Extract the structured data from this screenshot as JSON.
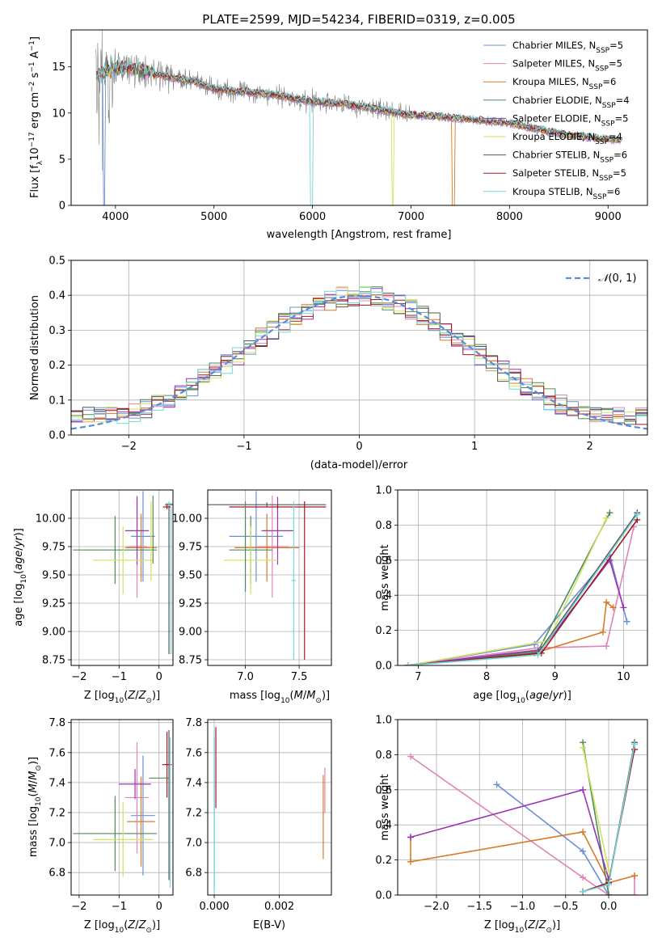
{
  "colors": {
    "ChabMILES": "#6b8fd6",
    "SalpMILES": "#e084b7",
    "KrouMILES": "#d97a26",
    "ChabELODIE": "#4f8b5a",
    "SalpELODIE": "#9a34b3",
    "KrouELODIE": "#cfe35f",
    "ChabSTELIB": "#555555",
    "SalpSTELIB": "#a31822",
    "KrouSTELIB": "#74d6d8"
  },
  "chart_data": [
    {
      "id": "spectrum",
      "type": "line",
      "title": "PLATE=2599, MJD=54234, FIBERID=0319, z=0.005",
      "xlabel": "wavelength [Angstrom, rest frame]",
      "ylabel": "Flux [f",
      "xlim": [
        3550,
        9400
      ],
      "ylim": [
        0,
        19
      ],
      "xticks": [
        4000,
        5000,
        6000,
        7000,
        8000,
        9000
      ],
      "yticks": [
        0,
        5,
        10,
        15
      ],
      "legend_position": "top-right",
      "grid": false,
      "observed": {
        "color": "#808080",
        "x": [
          3800,
          4000,
          4200,
          4500,
          4800,
          5000,
          5300,
          5600,
          6000,
          6300,
          6600,
          7000,
          7300,
          7600,
          8000,
          8300,
          8600,
          9000,
          9150
        ],
        "y": [
          14,
          15,
          14.8,
          14,
          13.4,
          12.6,
          12.3,
          12,
          11.2,
          11,
          10.5,
          9.8,
          9.6,
          9.3,
          8.9,
          8.2,
          7.6,
          7.2,
          7.0
        ]
      },
      "series": [
        {
          "name": "Chabrier MILES, N",
          "nssp": "5",
          "color_key": "ChabMILES"
        },
        {
          "name": "Salpeter MILES, N",
          "nssp": "5",
          "color_key": "SalpMILES"
        },
        {
          "name": "Kroupa MILES, N",
          "nssp": "6",
          "color_key": "KrouMILES"
        },
        {
          "name": "Chabrier ELODIE, N",
          "nssp": "4",
          "color_key": "ChabELODIE"
        },
        {
          "name": "Salpeter ELODIE, N",
          "nssp": "5",
          "color_key": "SalpELODIE"
        },
        {
          "name": "Kroupa ELODIE, N",
          "nssp": "4",
          "color_key": "KrouELODIE"
        },
        {
          "name": "Chabrier STELIB, N",
          "nssp": "6",
          "color_key": "ChabSTELIB"
        },
        {
          "name": "Salpeter STELIB, N",
          "nssp": "5",
          "color_key": "SalpSTELIB"
        },
        {
          "name": "Kroupa STELIB, N",
          "nssp": "6",
          "color_key": "KrouSTELIB"
        }
      ]
    },
    {
      "id": "residuals",
      "type": "line",
      "xlabel": "(data-model)/error",
      "ylabel": "Normed distribution",
      "xlim": [
        -2.5,
        2.5
      ],
      "ylim": [
        0,
        0.5
      ],
      "xticks": [
        -2,
        -1,
        0,
        1,
        2
      ],
      "yticks": [
        0.0,
        0.1,
        0.2,
        0.3,
        0.4,
        0.5
      ],
      "grid": true,
      "legend_position": "top-right",
      "normal_curve": {
        "label": "(0, 1)",
        "mean": 0,
        "sigma": 1,
        "color": "#5b8bd8"
      }
    },
    {
      "id": "z-age",
      "type": "scatter",
      "xlabel": "Z [log",
      "ylabel": "age  [log",
      "xlim": [
        -2.2,
        0.35
      ],
      "ylim": [
        8.7,
        10.25
      ],
      "xticks": [
        -2,
        -1,
        0
      ],
      "yticks": [
        8.75,
        9.0,
        9.25,
        9.5,
        9.75,
        10.0
      ],
      "grid": true,
      "points": [
        {
          "c": "ChabMILES",
          "x": -0.4,
          "xe": 0.3,
          "y": 9.84,
          "ye": 0.4
        },
        {
          "c": "SalpMILES",
          "x": -0.55,
          "xe": 0.25,
          "y": 9.75,
          "ye": 0.45
        },
        {
          "c": "KrouMILES",
          "x": -0.45,
          "xe": 0.4,
          "y": 9.74,
          "ye": 0.3
        },
        {
          "c": "ChabELODIE",
          "x": -1.1,
          "xe": 1.05,
          "y": 9.72,
          "ye": 0.3
        },
        {
          "c": "SalpELODIE",
          "x": -0.55,
          "xe": 0.3,
          "y": 9.89,
          "ye": 0.3
        },
        {
          "c": "KrouELODIE",
          "x": -0.9,
          "xe": 0.75,
          "y": 9.63,
          "ye": 0.3
        },
        {
          "c": "ChabSTELIB",
          "x": 0.25,
          "xe": 0.1,
          "y": 10.12,
          "ye": 0.02
        },
        {
          "c": "SalpSTELIB",
          "x": 0.2,
          "xe": 0.1,
          "y": 10.1,
          "ye": 0.02
        },
        {
          "c": "KrouSTELIB",
          "x": 0.25,
          "xe": 0.08,
          "y": 10.13,
          "ye": 0.02
        },
        {
          "c": "ChabELODIE",
          "x": -0.15,
          "xe": 0.0,
          "y": 9.9,
          "ye": 0.3
        },
        {
          "c": "KrouELODIE",
          "x": -0.2,
          "xe": 0.0,
          "y": 9.8,
          "ye": 0.35
        },
        {
          "c": "ChabSTELIB",
          "x": 0.25,
          "xe": 0.0,
          "y": 9.45,
          "ye": 0.65
        },
        {
          "c": "KrouSTELIB",
          "x": 0.3,
          "xe": 0.0,
          "y": 9.45,
          "ye": 0.65
        }
      ]
    },
    {
      "id": "mass-age",
      "type": "scatter",
      "xlabel": "mass [log",
      "ylabel": "",
      "xlim": [
        6.65,
        7.8
      ],
      "ylim": [
        8.7,
        10.25
      ],
      "xticks": [
        7.0,
        7.5
      ],
      "yticks": [
        8.75,
        9.0,
        9.25,
        9.5,
        9.75,
        10.0
      ],
      "grid": true,
      "points": [
        {
          "c": "ChabMILES",
          "x": 7.1,
          "xe": 0.25,
          "y": 9.84,
          "ye": 0.4
        },
        {
          "c": "SalpMILES",
          "x": 7.25,
          "xe": 0.15,
          "y": 9.75,
          "ye": 0.45
        },
        {
          "c": "KrouMILES",
          "x": 7.2,
          "xe": 0.3,
          "y": 9.74,
          "ye": 0.3
        },
        {
          "c": "ChabELODIE",
          "x": 7.05,
          "xe": 0.2,
          "y": 9.72,
          "ye": 0.3
        },
        {
          "c": "SalpELODIE",
          "x": 7.3,
          "xe": 0.15,
          "y": 9.89,
          "ye": 0.3
        },
        {
          "c": "KrouELODIE",
          "x": 7.05,
          "xe": 0.25,
          "y": 9.63,
          "ye": 0.3
        },
        {
          "c": "ChabSTELIB",
          "x": 7.2,
          "xe": 0.55,
          "y": 10.12,
          "ye": 0.02
        },
        {
          "c": "SalpSTELIB",
          "x": 7.3,
          "xe": 0.45,
          "y": 10.1,
          "ye": 0.02
        },
        {
          "c": "KrouSTELIB",
          "x": 7.45,
          "xe": 0.02,
          "y": 9.45,
          "ye": 0.7
        },
        {
          "c": "SalpSTELIB",
          "x": 7.55,
          "xe": 0.0,
          "y": 9.45,
          "ye": 0.7
        },
        {
          "c": "ChabELODIE",
          "x": 7.0,
          "xe": 0.0,
          "y": 9.75,
          "ye": 0.4
        }
      ]
    },
    {
      "id": "weight-age",
      "type": "line",
      "xlabel": "age  [log",
      "ylabel": "mass weight",
      "xlim": [
        6.7,
        10.35
      ],
      "ylim": [
        0,
        1.0
      ],
      "xticks": [
        7,
        8,
        9,
        10
      ],
      "yticks": [
        0.0,
        0.2,
        0.4,
        0.6,
        0.8,
        1.0
      ],
      "grid": true,
      "series": [
        {
          "c": "ChabMILES",
          "x": [
            6.85,
            8.7,
            9.8,
            10.05
          ],
          "y": [
            0.0,
            0.12,
            0.63,
            0.25
          ]
        },
        {
          "c": "SalpMILES",
          "x": [
            6.85,
            8.75,
            9.75,
            10.15
          ],
          "y": [
            0.0,
            0.1,
            0.11,
            0.79
          ]
        },
        {
          "c": "KrouMILES",
          "x": [
            6.85,
            8.7,
            9.7,
            9.75,
            9.85
          ],
          "y": [
            0.0,
            0.07,
            0.19,
            0.36,
            0.33
          ]
        },
        {
          "c": "ChabELODIE",
          "x": [
            6.85,
            8.75,
            9.8
          ],
          "y": [
            0.0,
            0.08,
            0.87
          ]
        },
        {
          "c": "SalpELODIE",
          "x": [
            6.85,
            8.8,
            9.8,
            10.0
          ],
          "y": [
            0.0,
            0.09,
            0.6,
            0.33
          ]
        },
        {
          "c": "KrouELODIE",
          "x": [
            6.85,
            8.9,
            9.75
          ],
          "y": [
            0.0,
            0.14,
            0.84
          ]
        },
        {
          "c": "ChabSTELIB",
          "x": [
            6.85,
            8.75,
            10.2
          ],
          "y": [
            0.0,
            0.07,
            0.87
          ]
        },
        {
          "c": "SalpSTELIB",
          "x": [
            6.85,
            8.8,
            10.2
          ],
          "y": [
            0.0,
            0.07,
            0.83
          ]
        },
        {
          "c": "KrouSTELIB",
          "x": [
            6.85,
            8.75,
            10.2
          ],
          "y": [
            0.0,
            0.06,
            0.86
          ]
        }
      ]
    },
    {
      "id": "z-mass",
      "type": "scatter",
      "xlabel": "Z [log",
      "ylabel": "mass [log",
      "xlim": [
        -2.2,
        0.35
      ],
      "ylim": [
        6.65,
        7.82
      ],
      "xticks": [
        -2,
        -1,
        0
      ],
      "yticks": [
        6.8,
        7.0,
        7.2,
        7.4,
        7.6,
        7.8
      ],
      "grid": true,
      "points": [
        {
          "c": "ChabMILES",
          "x": -0.4,
          "xe": 0.3,
          "y": 7.18,
          "ye": 0.4
        },
        {
          "c": "SalpMILES",
          "x": -0.55,
          "xe": 0.3,
          "y": 7.3,
          "ye": 0.37
        },
        {
          "c": "KrouMILES",
          "x": -0.45,
          "xe": 0.35,
          "y": 7.14,
          "ye": 0.3
        },
        {
          "c": "ChabELODIE",
          "x": -1.1,
          "xe": 1.05,
          "y": 7.06,
          "ye": 0.25
        },
        {
          "c": "SalpELODIE",
          "x": -0.6,
          "xe": 0.4,
          "y": 7.39,
          "ye": 0.1
        },
        {
          "c": "KrouELODIE",
          "x": -0.9,
          "xe": 0.75,
          "y": 7.02,
          "ye": 0.25
        },
        {
          "c": "ChabSTELIB",
          "x": 0.25,
          "xe": 0.0,
          "y": 7.25,
          "ye": 0.5
        },
        {
          "c": "SalpSTELIB",
          "x": 0.2,
          "xe": 0.12,
          "y": 7.52,
          "ye": 0.22
        },
        {
          "c": "KrouSTELIB",
          "x": 0.28,
          "xe": 0.0,
          "y": 7.2,
          "ye": 0.5
        },
        {
          "c": "ChabELODIE",
          "x": 0.0,
          "xe": 0.25,
          "y": 7.43,
          "ye": 0.0
        }
      ]
    },
    {
      "id": "ebv-mass",
      "type": "scatter",
      "xlabel": "E(B-V)",
      "ylabel": "",
      "xlim": [
        -0.0002,
        0.0036
      ],
      "ylim": [
        6.65,
        7.82
      ],
      "xticks": [
        0.0,
        0.002
      ],
      "yticks": [
        6.8,
        7.0,
        7.2,
        7.4,
        7.6,
        7.8
      ],
      "grid": true,
      "points": [
        {
          "c": "ChabMILES",
          "x": 0.0,
          "xe": 0,
          "y": 7.2,
          "ye": 0.5
        },
        {
          "c": "SalpSTELIB",
          "x": 5e-05,
          "xe": 0,
          "y": 7.5,
          "ye": 0.27
        },
        {
          "c": "KrouSTELIB",
          "x": 0.0,
          "xe": 0,
          "y": 7.2,
          "ye": 0.55
        },
        {
          "c": "KrouMILES",
          "x": 0.00335,
          "xe": 0,
          "y": 7.17,
          "ye": 0.28
        },
        {
          "c": "SalpMILES",
          "x": 0.0034,
          "xe": 0,
          "y": 7.35,
          "ye": 0.15
        }
      ]
    },
    {
      "id": "weight-z",
      "type": "line",
      "xlabel": "Z [log",
      "ylabel": "mass weight",
      "xlim": [
        -2.45,
        0.45
      ],
      "ylim": [
        0,
        1.0
      ],
      "xticks": [
        -2.0,
        -1.5,
        -1.0,
        -0.5,
        0.0
      ],
      "yticks": [
        0.0,
        0.2,
        0.4,
        0.6,
        0.8,
        1.0
      ],
      "grid": true,
      "series": [
        {
          "c": "ChabMILES",
          "x": [
            -1.3,
            -0.3,
            0.0
          ],
          "y": [
            0.63,
            0.25,
            0.0
          ]
        },
        {
          "c": "SalpMILES",
          "x": [
            -2.3,
            -0.3,
            0.0,
            0.3,
            0.3
          ],
          "y": [
            0.79,
            0.1,
            0.0,
            0.0,
            0.11
          ]
        },
        {
          "c": "KrouMILES",
          "x": [
            -2.3,
            -2.3,
            -0.3,
            0.0,
            0.3
          ],
          "y": [
            0.33,
            0.19,
            0.36,
            0.07,
            0.11
          ]
        },
        {
          "c": "ChabELODIE",
          "x": [
            -0.3,
            0.0
          ],
          "y": [
            0.87,
            0.0
          ]
        },
        {
          "c": "SalpELODIE",
          "x": [
            -2.3,
            -0.3,
            0.0
          ],
          "y": [
            0.33,
            0.6,
            0.09
          ]
        },
        {
          "c": "KrouELODIE",
          "x": [
            -0.3,
            0.0
          ],
          "y": [
            0.84,
            0.14
          ]
        },
        {
          "c": "ChabSTELIB",
          "x": [
            -0.3,
            0.0,
            0.3
          ],
          "y": [
            0.02,
            0.07,
            0.87
          ]
        },
        {
          "c": "SalpSTELIB",
          "x": [
            -0.3,
            0.0,
            0.3
          ],
          "y": [
            0.02,
            0.07,
            0.83
          ]
        },
        {
          "c": "KrouSTELIB",
          "x": [
            -0.3,
            0.0,
            0.3
          ],
          "y": [
            0.02,
            0.06,
            0.86
          ]
        }
      ]
    }
  ]
}
